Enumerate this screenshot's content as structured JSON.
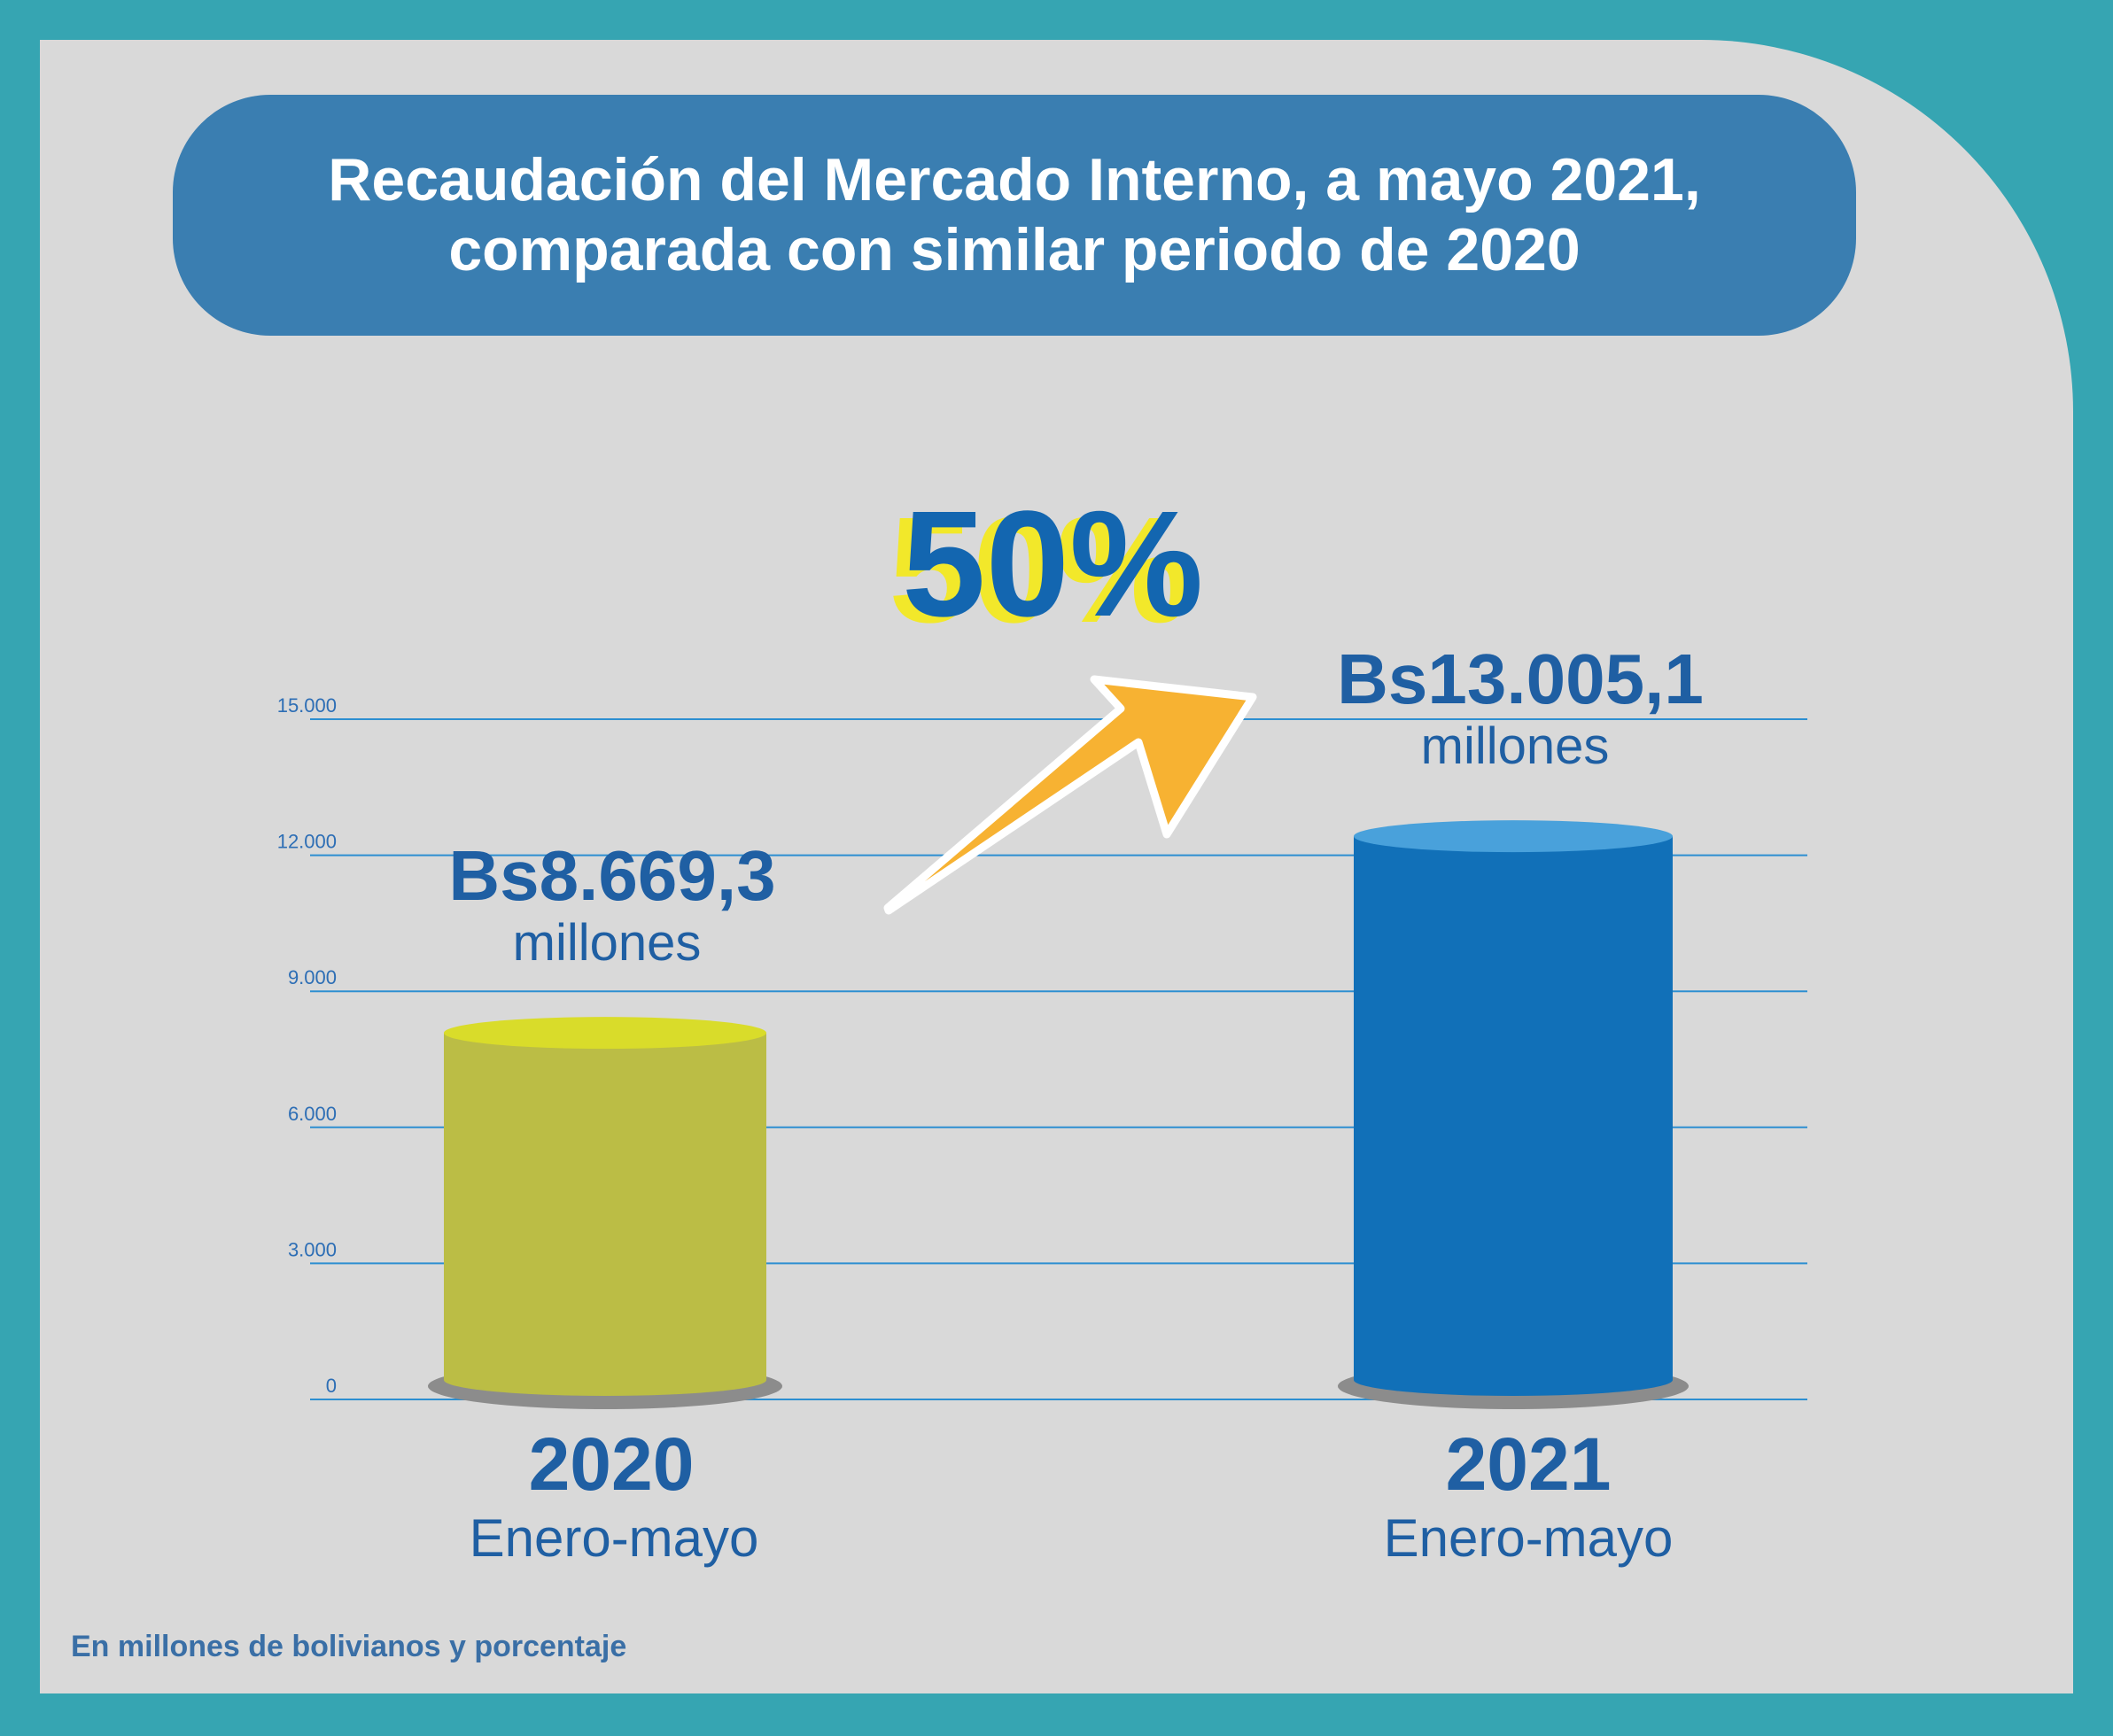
{
  "title_line1": "Recaudación del Mercado Interno, a mayo 2021,",
  "title_line2": "comparada con similar periodo de 2020",
  "growth_badge": "50%",
  "footnote": "En millones de bolivianos y porcentaje",
  "colors": {
    "frame": "#36a5b2",
    "panel": "#d9d9d9",
    "title_bg": "#3a7eb1",
    "bar_2020": "#bbbd45",
    "bar_2020_top": "#d9dc2a",
    "bar_2021": "#1170b8",
    "bar_2021_top": "#49a1db",
    "value_text": "#1f5fa3",
    "axis_text": "#2d6eb5",
    "grid": "#2d8fd1",
    "arrow": "#f7b232",
    "badge_blue": "#1366b0",
    "badge_shadow": "#f2e82a"
  },
  "chart_data": {
    "type": "bar",
    "categories": [
      "2020",
      "2021"
    ],
    "category_sublabels": [
      "Enero-mayo",
      "Enero-mayo"
    ],
    "values": [
      8669.3,
      13005.1
    ],
    "value_labels": [
      "Bs8.669,3",
      "Bs13.005,1"
    ],
    "value_units": [
      "millones",
      "millones"
    ],
    "yticks": [
      0,
      3000,
      6000,
      9000,
      12000,
      15000
    ],
    "ytick_labels": [
      "0",
      "3.000",
      "6.000",
      "9.000",
      "12.000",
      "15.000"
    ],
    "ylim": [
      0,
      15000
    ],
    "grid": true
  }
}
